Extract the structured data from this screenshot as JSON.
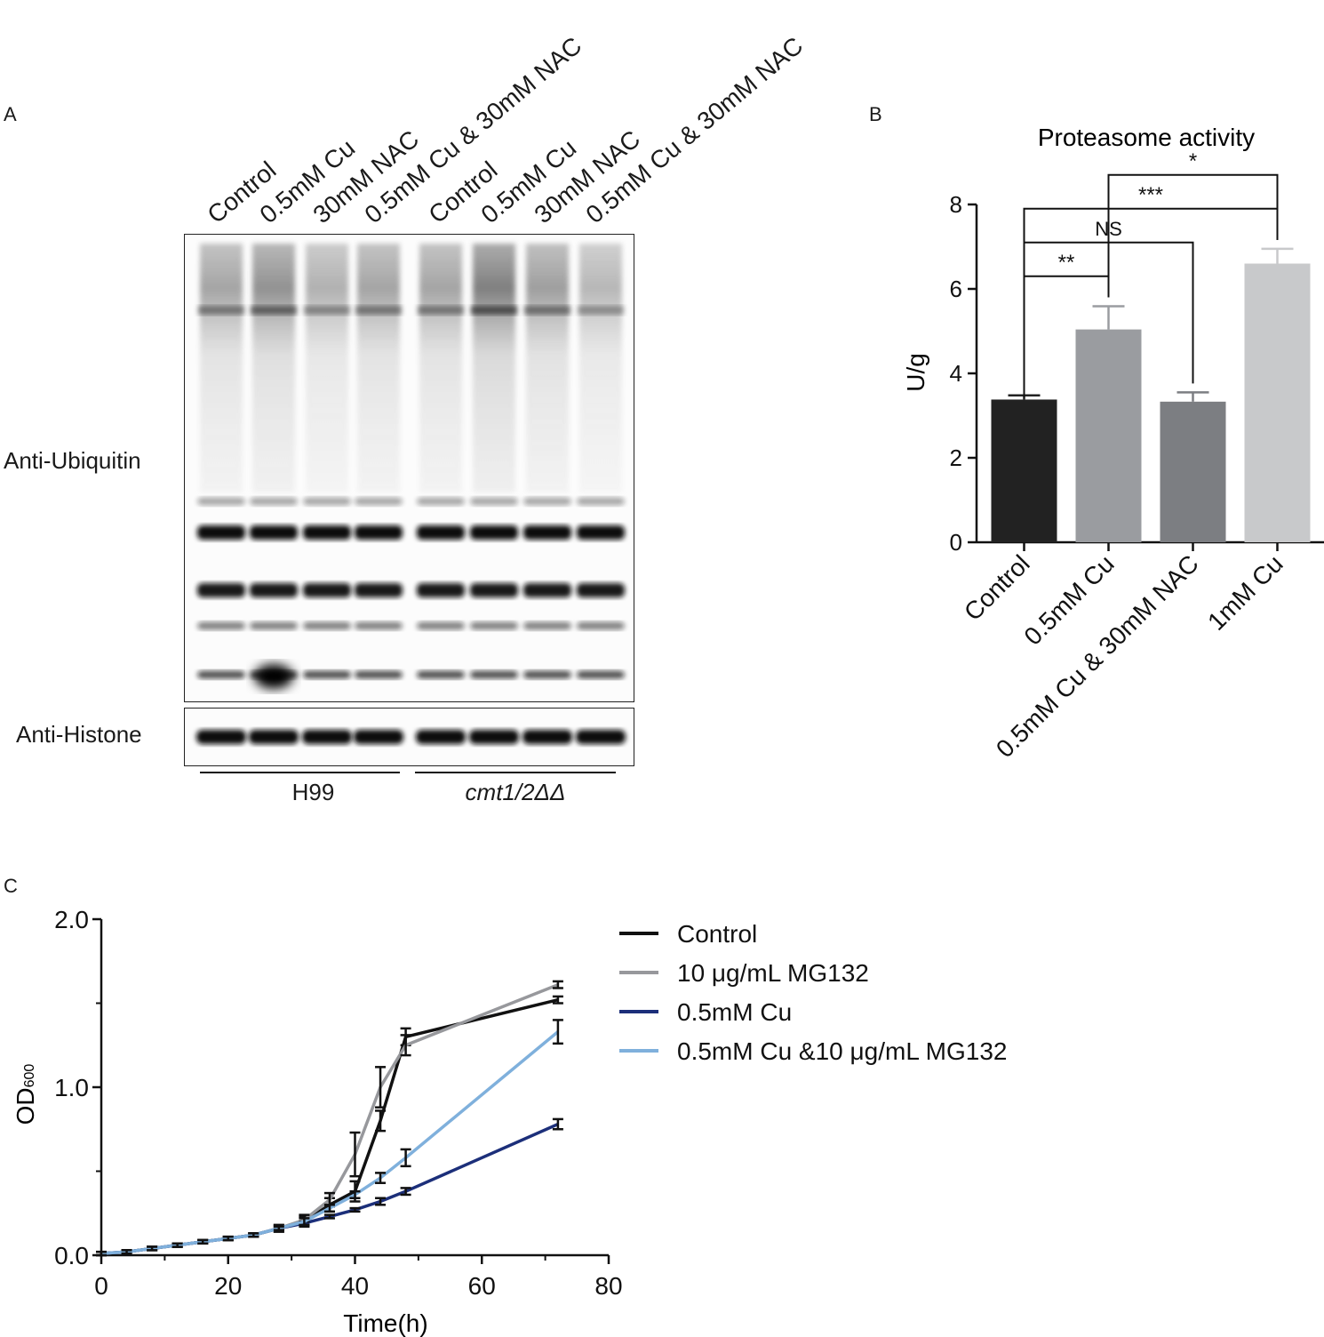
{
  "panel_a": {
    "letter": "A",
    "lanes": [
      "Control",
      "0.5mM Cu",
      "30mM NAC",
      "0.5mM Cu & 30mM NAC",
      "Control",
      "0.5mM Cu",
      "30mM NAC",
      "0.5mM Cu & 30mM NAC"
    ],
    "blot_labels": {
      "top": "Anti-Ubiquitin",
      "bottom": "Anti-Histone"
    },
    "strains": [
      "H99",
      "cmt1/2ΔΔ"
    ]
  },
  "panel_b": {
    "letter": "B",
    "chart_data": {
      "type": "bar",
      "title": "Proteasome activity",
      "ylabel": "U/g",
      "xlabel": "",
      "ylim": [
        0,
        8
      ],
      "yticks": [
        "0",
        "2",
        "4",
        "6",
        "8"
      ],
      "categories": [
        "Control",
        "0.5mM Cu",
        "0.5mM Cu & 30mM NAC",
        "1mM Cu"
      ],
      "values": [
        3.38,
        5.04,
        3.33,
        6.6
      ],
      "errors": [
        0.1,
        0.55,
        0.22,
        0.35
      ],
      "colors": [
        "#222222",
        "#9a9ca0",
        "#7c7e82",
        "#c8c9cb"
      ],
      "significance": [
        {
          "from": 0,
          "to": 1,
          "label": "**"
        },
        {
          "from": 0,
          "to": 2,
          "label": "NS"
        },
        {
          "from": 0,
          "to": 3,
          "label": "***"
        },
        {
          "from": 1,
          "to": 3,
          "label": "*"
        }
      ]
    }
  },
  "panel_c": {
    "letter": "C",
    "chart_data": {
      "type": "line",
      "title": "",
      "xlabel": "Time(h)",
      "ylabel_main": "OD",
      "ylabel_sub": "600",
      "xlim": [
        0,
        80
      ],
      "ylim": [
        0,
        2.0
      ],
      "xticks": [
        "0",
        "20",
        "40",
        "60",
        "80"
      ],
      "yticks": [
        "0.0",
        "1.0",
        "2.0"
      ],
      "x": [
        0,
        4,
        8,
        12,
        16,
        20,
        24,
        28,
        32,
        36,
        40,
        44,
        48,
        72
      ],
      "series": [
        {
          "name": "Control",
          "color": "#111111",
          "values": [
            0.01,
            0.02,
            0.04,
            0.06,
            0.08,
            0.1,
            0.12,
            0.16,
            0.2,
            0.3,
            0.38,
            0.8,
            1.3,
            1.52
          ],
          "errors": [
            0.01,
            0.01,
            0.01,
            0.01,
            0.01,
            0.01,
            0.01,
            0.02,
            0.03,
            0.04,
            0.06,
            0.06,
            0.05,
            0.02
          ]
        },
        {
          "name": "10 μg/mL MG132",
          "color": "#97989c",
          "values": [
            0.01,
            0.02,
            0.04,
            0.06,
            0.08,
            0.1,
            0.12,
            0.16,
            0.21,
            0.33,
            0.6,
            1.0,
            1.25,
            1.61
          ],
          "errors": [
            0.01,
            0.01,
            0.01,
            0.01,
            0.01,
            0.01,
            0.01,
            0.02,
            0.03,
            0.04,
            0.13,
            0.12,
            0.06,
            0.02
          ]
        },
        {
          "name": "0.5mM Cu",
          "color": "#1c2f7a",
          "values": [
            0.01,
            0.02,
            0.04,
            0.06,
            0.08,
            0.1,
            0.12,
            0.16,
            0.19,
            0.23,
            0.27,
            0.32,
            0.38,
            0.78
          ],
          "errors": [
            0.01,
            0.01,
            0.01,
            0.01,
            0.01,
            0.01,
            0.01,
            0.01,
            0.01,
            0.01,
            0.01,
            0.02,
            0.02,
            0.03
          ]
        },
        {
          "name": "0.5mM Cu &10 μg/mL MG132",
          "color": "#7fb0dc",
          "values": [
            0.01,
            0.02,
            0.04,
            0.06,
            0.08,
            0.1,
            0.12,
            0.16,
            0.2,
            0.28,
            0.36,
            0.46,
            0.58,
            1.33
          ],
          "errors": [
            0.01,
            0.01,
            0.01,
            0.01,
            0.01,
            0.01,
            0.01,
            0.01,
            0.02,
            0.02,
            0.02,
            0.03,
            0.05,
            0.07
          ]
        }
      ]
    }
  }
}
